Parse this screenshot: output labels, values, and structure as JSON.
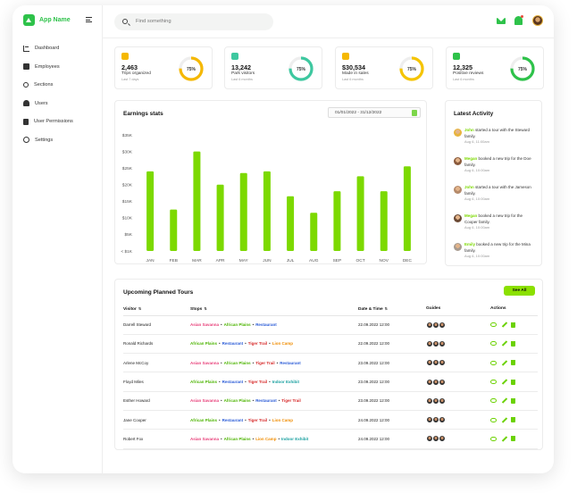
{
  "app": {
    "name": "App Name"
  },
  "sidebar": {
    "items": [
      {
        "label": "Dashboard",
        "icon": "chart-icon"
      },
      {
        "label": "Employees",
        "icon": "id-card-icon"
      },
      {
        "label": "Sections",
        "icon": "sections-icon"
      },
      {
        "label": "Users",
        "icon": "users-icon"
      },
      {
        "label": "User Permissions",
        "icon": "permissions-icon"
      },
      {
        "label": "Settings",
        "icon": "gear-icon"
      }
    ]
  },
  "search": {
    "placeholder": "Find something"
  },
  "colors": {
    "accent": "#7cd900",
    "green": "#2ec24a"
  },
  "stats": [
    {
      "value": "2,463",
      "label": "Trips organized",
      "sub": "Last 7 days",
      "percent": 75,
      "percent_label": "75%",
      "color": "#f5b800",
      "icon_color": "#f5b800"
    },
    {
      "value": "13,242",
      "label": "Park visitors",
      "sub": "Last 6 months",
      "percent": 75,
      "percent_label": "75%",
      "color": "#3ec8a0",
      "icon_color": "#3ec8a0"
    },
    {
      "value": "$30,534",
      "label": "Made in sales",
      "sub": "Last 6 months",
      "percent": 75,
      "percent_label": "75%",
      "color": "#f5c400",
      "icon_color": "#f5b800"
    },
    {
      "value": "12,325",
      "label": "Positive reviews",
      "sub": "Last 6 months",
      "percent": 75,
      "percent_label": "75%",
      "color": "#2ec24a",
      "icon_color": "#2ec24a"
    }
  ],
  "earnings": {
    "title": "Earnings stats",
    "date_range": "01/01/2022 - 31/12/2022"
  },
  "chart_data": {
    "type": "bar",
    "title": "Earnings stats",
    "categories": [
      "JAN",
      "FEB",
      "MAR",
      "APR",
      "MAY",
      "JUN",
      "JUL",
      "AUG",
      "SEP",
      "OCT",
      "NOV",
      "DEC"
    ],
    "values": [
      24,
      12.5,
      30,
      20,
      23.5,
      24,
      16.5,
      11.5,
      18,
      22.5,
      18,
      25.5
    ],
    "ylim": [
      0,
      35
    ],
    "yticks": [
      "< $1K",
      "$5K",
      "$10K",
      "$15K",
      "$20K",
      "$25K",
      "$30K",
      "$35K"
    ],
    "ytick_values": [
      0,
      5,
      10,
      15,
      20,
      25,
      30,
      35
    ],
    "grid": false,
    "color": "#7cd900"
  },
  "activity": {
    "title": "Latest Activity",
    "items": [
      {
        "name": "John",
        "text": "started a tour with the Steward family.",
        "time": "Aug 6, 11:00am",
        "avatar": "#e8b43e"
      },
      {
        "name": "Megan",
        "text": "booked a new trip for the Doe family.",
        "time": "Aug 6, 10:00am",
        "avatar": "#8a5a3c"
      },
      {
        "name": "John",
        "text": "started a tour with the Jameson family.",
        "time": "Aug 6, 10:00am",
        "avatar": "#b58a6a"
      },
      {
        "name": "Megan",
        "text": "booked a new trip for the Cooper family.",
        "time": "Aug 6, 10:00am",
        "avatar": "#6b4a35"
      },
      {
        "name": "Emily",
        "text": "booked a new trip for the Mina family.",
        "time": "Aug 6, 10:00am",
        "avatar": "#a89b90"
      }
    ]
  },
  "tours": {
    "title": "Upcoming Planned Tours",
    "see_all": "See All",
    "headers": {
      "visitor": "Visitor",
      "stops": "Stops",
      "date": "Date & Time",
      "guides": "Guides",
      "actions": "Actions"
    },
    "rows": [
      {
        "visitor": "Darrell Steward",
        "stops": [
          [
            "Asian Savanna",
            "#e8407a"
          ],
          [
            "African Plains",
            "#4cb400"
          ],
          [
            "Restaurant",
            "#2a5bd7"
          ]
        ],
        "date": "22.09.2022 12:00"
      },
      {
        "visitor": "Ronald Richards",
        "stops": [
          [
            "African Plains",
            "#4cb400"
          ],
          [
            "Restaurant",
            "#2a5bd7"
          ],
          [
            "Tiger Trail",
            "#d62828"
          ],
          [
            "Lion Camp",
            "#f08c00"
          ]
        ],
        "date": "22.09.2022 12:00"
      },
      {
        "visitor": "Arlene McCoy",
        "stops": [
          [
            "Asian Savanna",
            "#e8407a"
          ],
          [
            "African Plains",
            "#4cb400"
          ],
          [
            "Tiger Trail",
            "#d62828"
          ],
          [
            "Restaurant",
            "#2a5bd7"
          ]
        ],
        "date": "23.09.2022 12:00"
      },
      {
        "visitor": "Floyd Miles",
        "stops": [
          [
            "African Plains",
            "#4cb400"
          ],
          [
            "Restaurant",
            "#2a5bd7"
          ],
          [
            "Tiger Trail",
            "#d62828"
          ],
          [
            "Indoor Exhibit",
            "#1aa0a0"
          ]
        ],
        "date": "23.09.2022 12:00"
      },
      {
        "visitor": "Esther Howard",
        "stops": [
          [
            "Asian Savanna",
            "#e8407a"
          ],
          [
            "African Plains",
            "#4cb400"
          ],
          [
            "Restaurant",
            "#2a5bd7"
          ],
          [
            "Tiger Trail",
            "#d62828"
          ]
        ],
        "date": "23.09.2022 12:00"
      },
      {
        "visitor": "Jane Cooper",
        "stops": [
          [
            "African Plains",
            "#4cb400"
          ],
          [
            "Restaurant",
            "#2a5bd7"
          ],
          [
            "Tiger Trail",
            "#d62828"
          ],
          [
            "Lion Camp",
            "#f08c00"
          ]
        ],
        "date": "24.09.2022 12:00"
      },
      {
        "visitor": "Robert Fox",
        "stops": [
          [
            "Asian Savanna",
            "#e8407a"
          ],
          [
            "African Plains",
            "#4cb400"
          ],
          [
            "Lion Camp",
            "#f08c00"
          ],
          [
            "Indoor Exhibit",
            "#1aa0a0"
          ]
        ],
        "date": "24.09.2022 12:00"
      }
    ]
  }
}
